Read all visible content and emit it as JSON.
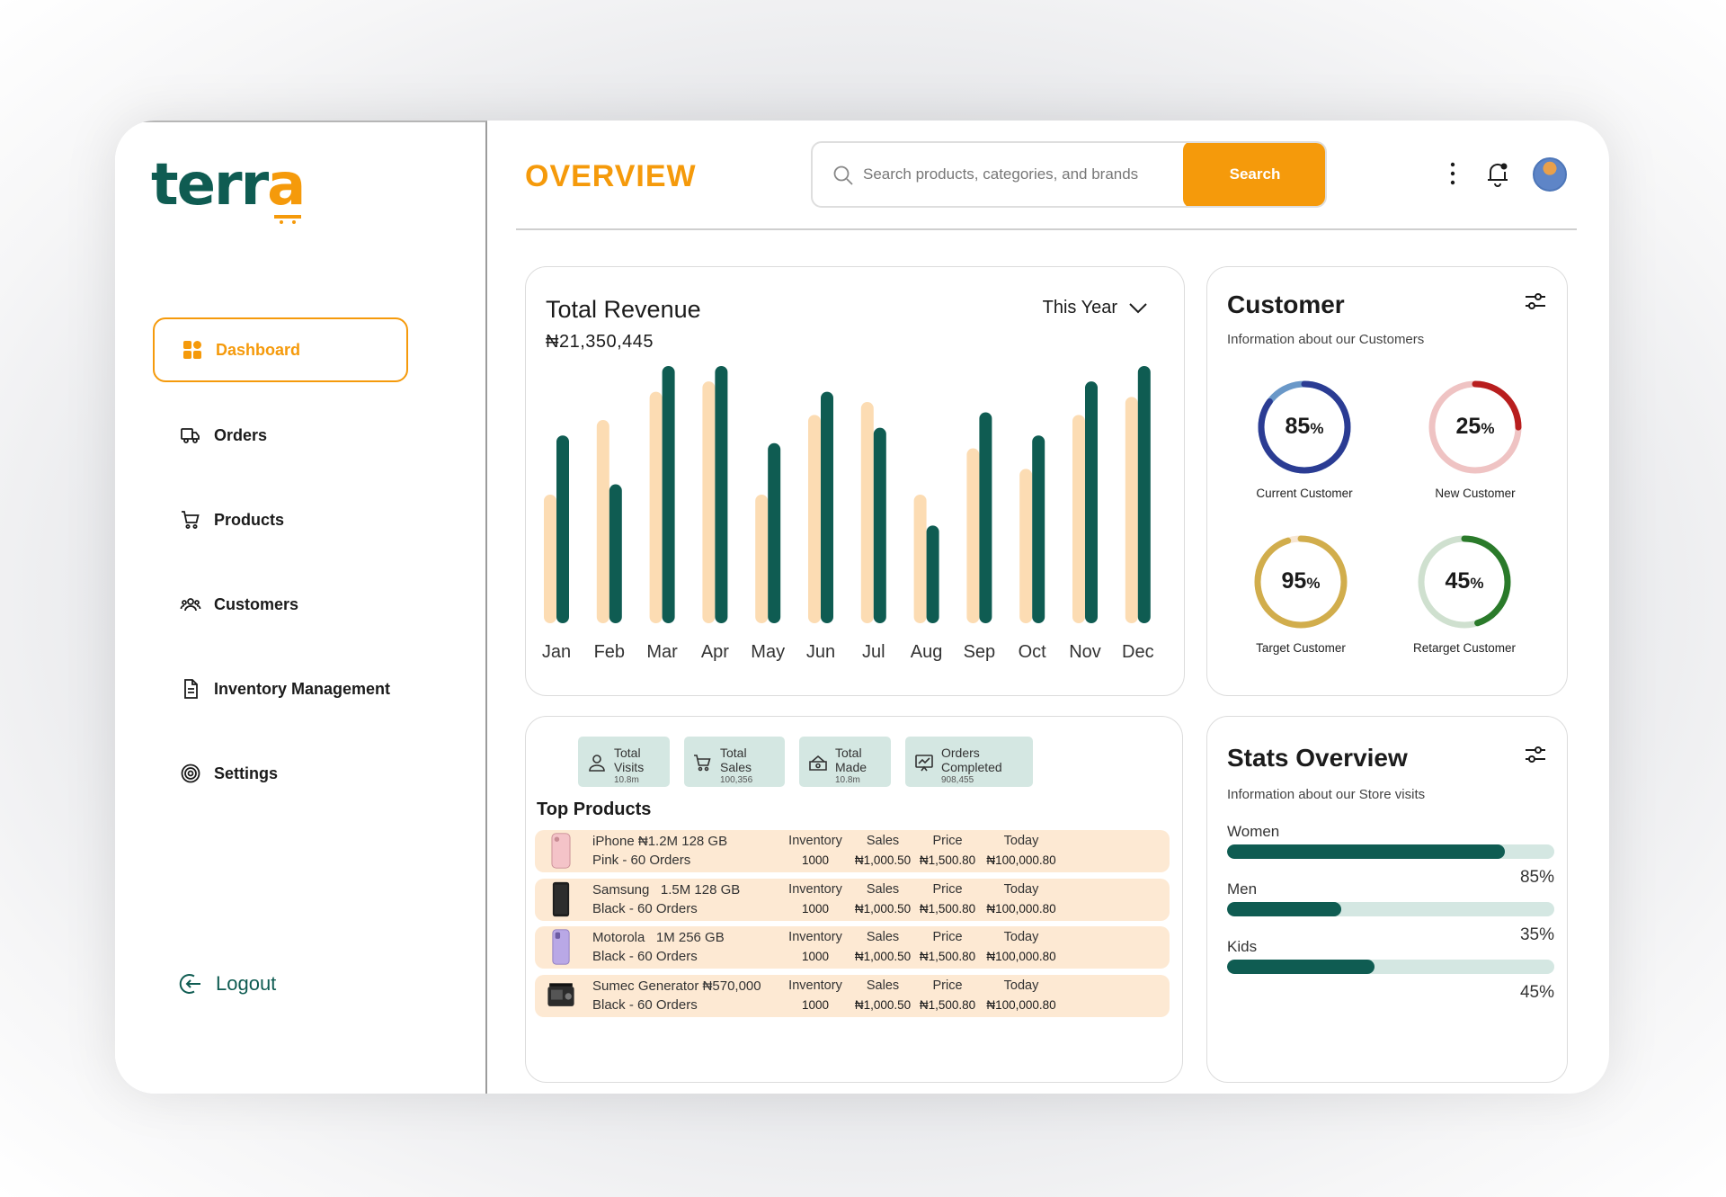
{
  "brand": {
    "logo_main": "terr",
    "logo_accent": "a"
  },
  "sidebar": {
    "items": [
      {
        "label": "Dashboard",
        "icon": "dashboard-grid-icon",
        "active": true
      },
      {
        "label": "Orders",
        "icon": "truck-icon"
      },
      {
        "label": "Products",
        "icon": "cart-icon"
      },
      {
        "label": "Customers",
        "icon": "users-icon"
      },
      {
        "label": "Inventory Management",
        "icon": "document-icon"
      },
      {
        "label": "Settings",
        "icon": "gear-icon"
      }
    ],
    "logout_label": "Logout"
  },
  "header": {
    "title": "OVERVIEW",
    "search_placeholder": "Search products, categories, and brands",
    "search_button": "Search"
  },
  "colors": {
    "accent": "#f59a0b",
    "brand": "#0f5c52",
    "bar_light": "#fcdcb3",
    "pill_bg": "#d4e7e2",
    "row_bg": "#fde9d3"
  },
  "revenue": {
    "title": "Total Revenue",
    "value": "₦21,350,445",
    "period": "This Year"
  },
  "chart_data": {
    "type": "bar",
    "categories": [
      "Jan",
      "Feb",
      "Mar",
      "Apr",
      "May",
      "Jun",
      "Jul",
      "Aug",
      "Sep",
      "Oct",
      "Nov",
      "Dec"
    ],
    "series": [
      {
        "values": [
          50,
          79,
          90,
          94,
          50,
          81,
          86,
          50,
          68,
          60,
          81,
          88
        ],
        "color": "#fcdcb3"
      },
      {
        "values": [
          73,
          54,
          100,
          100,
          70,
          90,
          76,
          38,
          82,
          73,
          94,
          100
        ],
        "color": "#0f5c52"
      }
    ],
    "ylim": [
      0,
      100
    ]
  },
  "customer": {
    "title": "Customer",
    "subtitle": "Information about our Customers",
    "rings": [
      {
        "value": 85,
        "label": "Current Customer",
        "color": "#2b3c93",
        "track": "#6a98c8"
      },
      {
        "value": 25,
        "label": "New Customer",
        "color": "#b81e1e",
        "track": "#efc3c3"
      },
      {
        "value": 95,
        "label": "Target Customer",
        "color": "#d1ad4c",
        "track": "#f7e6d2"
      },
      {
        "value": 45,
        "label": "Retarget Customer",
        "color": "#2a7a2a",
        "track": "#cfe0cf"
      }
    ]
  },
  "stats_pills": [
    {
      "label": "Total Visits",
      "value": "10.8m",
      "icon": "user-icon"
    },
    {
      "label": "Total Sales",
      "value": "100,356",
      "icon": "cart-icon"
    },
    {
      "label": "Total Made",
      "value": "10.8m",
      "icon": "money-box-icon"
    },
    {
      "label": "Orders Completed",
      "value": "908,455",
      "icon": "presentation-chart-icon"
    }
  ],
  "top_products": {
    "title": "Top Products",
    "columns": [
      "Inventory",
      "Sales",
      "Price",
      "Today"
    ],
    "rows": [
      {
        "name": "iPhone ₦1.2M 128 GB",
        "detail": "Pink - 60 Orders",
        "thumb": "pink-phone",
        "inventory": "1000",
        "sales": "₦1,000.50",
        "price": "₦1,500.80",
        "today": "₦100,000.80"
      },
      {
        "name": "Samsung   1.5M 128 GB",
        "detail": "Black - 60 Orders",
        "thumb": "black-phone",
        "inventory": "1000",
        "sales": "₦1,000.50",
        "price": "₦1,500.80",
        "today": "₦100,000.80"
      },
      {
        "name": "Motorola   1M 256 GB",
        "detail": "Black - 60 Orders",
        "thumb": "purple-phone",
        "inventory": "1000",
        "sales": "₦1,000.50",
        "price": "₦1,500.80",
        "today": "₦100,000.80"
      },
      {
        "name": "Sumec Generator ₦570,000",
        "detail": "Black - 60 Orders",
        "thumb": "generator",
        "inventory": "1000",
        "sales": "₦1,000.50",
        "price": "₦1,500.80",
        "today": "₦100,000.80"
      }
    ]
  },
  "stats_overview": {
    "title": "Stats Overview",
    "subtitle": "Information about our Store visits",
    "bars": [
      {
        "label": "Women",
        "value": 85,
        "pct": "85%"
      },
      {
        "label": "Men",
        "value": 35,
        "pct": "35%"
      },
      {
        "label": "Kids",
        "value": 45,
        "pct": "45%"
      }
    ]
  }
}
